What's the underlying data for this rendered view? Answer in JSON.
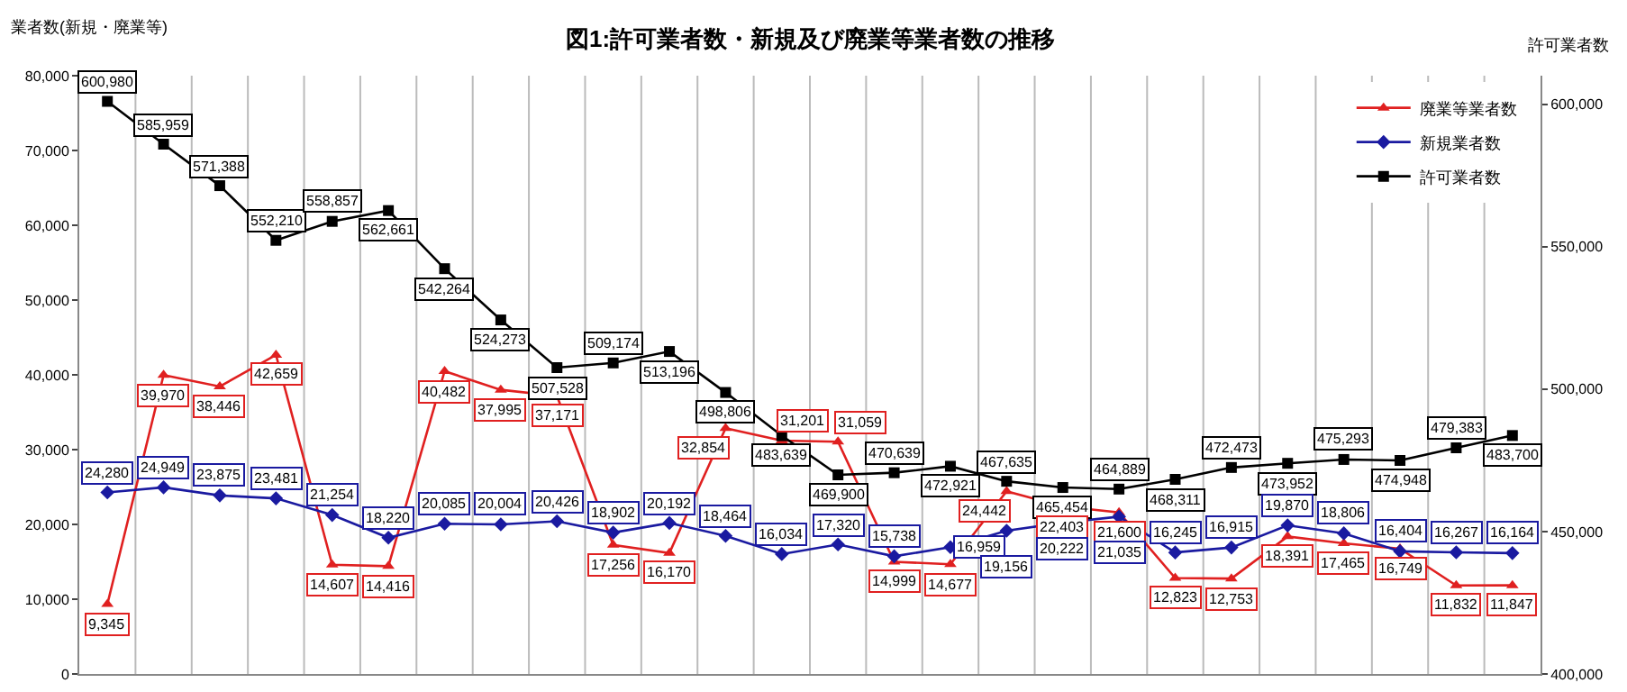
{
  "chart_data": {
    "type": "line",
    "title": "図1:許可業者数・新規及び廃業等業者数の推移",
    "ylabel": "業者数(新規・廃業等)",
    "y2label": "許可業者数",
    "categories": [
      null,
      null,
      null,
      null,
      null,
      null,
      null,
      null,
      null,
      null,
      null,
      null,
      null,
      null,
      null,
      null,
      null,
      null,
      null,
      null,
      null,
      null,
      null,
      null,
      null,
      null
    ],
    "series": [
      {
        "name": "廃業等業者数",
        "color": "#e02020",
        "marker": "triangle",
        "values": [
          9345,
          39970,
          38446,
          42659,
          14607,
          14416,
          40482,
          37995,
          37171,
          17256,
          16170,
          32854,
          31201,
          31059,
          14999,
          14677,
          24442,
          22403,
          21600,
          12823,
          12753,
          18391,
          17465,
          16749,
          11832,
          11847
        ],
        "value_labels": [
          "9,345",
          "39,970",
          "38,446",
          "42,659",
          "14,607",
          "14,416",
          "40,482",
          "37,995",
          "37,171",
          "17,256",
          "16,170",
          "32,854",
          "31,201",
          "31,059",
          "14,999",
          "14,677",
          "24,442",
          "22,403",
          "21,600",
          "12,823",
          "12,753",
          "18,391",
          "17,465",
          "16,749",
          "11,832",
          "11,847"
        ]
      },
      {
        "name": "新規業者数",
        "color": "#1a1aa0",
        "marker": "diamond",
        "values": [
          24280,
          24949,
          23875,
          23481,
          21254,
          18220,
          20085,
          20004,
          20426,
          18902,
          20192,
          18464,
          16034,
          17320,
          15738,
          16959,
          19156,
          20222,
          21035,
          16245,
          16915,
          19870,
          18806,
          16404,
          16267,
          16164
        ],
        "value_labels": [
          "24,280",
          "24,949",
          "23,875",
          "23,481",
          "21,254",
          "18,220",
          "20,085",
          "20,004",
          "20,426",
          "18,902",
          "20,192",
          "18,464",
          "16,034",
          "17,320",
          "15,738",
          "16,959",
          "19,156",
          "20,222",
          "21,035",
          "16,245",
          "16,915",
          "19,870",
          "18,806",
          "16,404",
          "16,267",
          "16,164"
        ]
      },
      {
        "name": "許可業者数",
        "color": "#000000",
        "marker": "square",
        "axis": "y2",
        "values": [
          600980,
          585959,
          571388,
          552210,
          558857,
          562661,
          542264,
          524273,
          507528,
          509174,
          513196,
          498806,
          483639,
          469900,
          470639,
          472921,
          467635,
          465454,
          464889,
          468311,
          472473,
          473952,
          475293,
          474948,
          479383,
          483700
        ],
        "value_labels": [
          "600,980",
          "585,959",
          "571,388",
          "552,210",
          "558,857",
          "562,661",
          "542,264",
          "524,273",
          "507,528",
          "509,174",
          "513,196",
          "498,806",
          "483,639",
          "469,900",
          "470,639",
          "472,921",
          "467,635",
          "465,454",
          "464,889",
          "468,311",
          "472,473",
          "473,952",
          "475,293",
          "474,948",
          "479,383",
          "483,700"
        ]
      }
    ],
    "ylim": [
      0,
      80000
    ],
    "yticks": [
      {
        "value": 0,
        "label": "0"
      },
      {
        "value": 10000,
        "label": "10,000"
      },
      {
        "value": 20000,
        "label": "20,000"
      },
      {
        "value": 30000,
        "label": "30,000"
      },
      {
        "value": 40000,
        "label": "40,000"
      },
      {
        "value": 50000,
        "label": "50,000"
      },
      {
        "value": 60000,
        "label": "60,000"
      },
      {
        "value": 70000,
        "label": "70,000"
      },
      {
        "value": 80000,
        "label": "80,000"
      }
    ],
    "y2lim": [
      400000,
      610000
    ],
    "y2ticks": [
      {
        "value": 400000,
        "label": "400,000"
      },
      {
        "value": 450000,
        "label": "450,000"
      },
      {
        "value": 500000,
        "label": "500,000"
      },
      {
        "value": 550000,
        "label": "550,000"
      },
      {
        "value": 600000,
        "label": "600,000"
      }
    ],
    "grid": "x",
    "legend": "top right",
    "line_style": "solid",
    "tick_labels": "y"
  }
}
